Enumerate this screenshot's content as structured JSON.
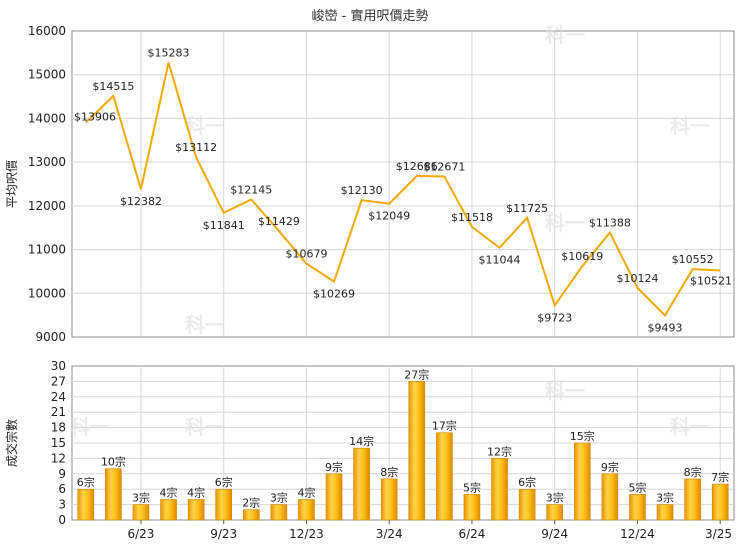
{
  "chart_data": [
    {
      "type": "line",
      "title": "峻巒 - 實用呎價走勢",
      "ylabel": "平均呎價",
      "ylim": [
        9000,
        16000
      ],
      "yticks": [
        9000,
        10000,
        11000,
        12000,
        13000,
        14000,
        15000,
        16000
      ],
      "grid": true,
      "color": "#f5a800",
      "points": [
        {
          "value": 13906,
          "label": "$13906"
        },
        {
          "value": 14515,
          "label": "$14515"
        },
        {
          "value": 12382,
          "label": "$12382"
        },
        {
          "value": 15283,
          "label": "$15283"
        },
        {
          "value": 13112,
          "label": "$13112"
        },
        {
          "value": 11841,
          "label": "$11841"
        },
        {
          "value": 12145,
          "label": "$12145"
        },
        {
          "value": 11429,
          "label": "$11429"
        },
        {
          "value": 10679,
          "label": "$10679"
        },
        {
          "value": 10269,
          "label": "$10269"
        },
        {
          "value": 12130,
          "label": "$12130"
        },
        {
          "value": 12049,
          "label": "$12049"
        },
        {
          "value": 12686,
          "label": "$12686"
        },
        {
          "value": 12671,
          "label": "$12671"
        },
        {
          "value": 11518,
          "label": "$11518"
        },
        {
          "value": 11044,
          "label": "$11044"
        },
        {
          "value": 11725,
          "label": "$11725"
        },
        {
          "value": 9723,
          "label": "$9723"
        },
        {
          "value": 10619,
          "label": "$10619"
        },
        {
          "value": 11388,
          "label": "$11388"
        },
        {
          "value": 10124,
          "label": "$10124"
        },
        {
          "value": 9493,
          "label": "$9493"
        },
        {
          "value": 10552,
          "label": "$10552"
        },
        {
          "value": 10521,
          "label": "$10521"
        }
      ]
    },
    {
      "type": "bar",
      "ylabel": "成交宗數",
      "ylim": [
        0,
        30
      ],
      "yticks": [
        0,
        3,
        6,
        9,
        12,
        15,
        18,
        21,
        24,
        27,
        30
      ],
      "grid": true,
      "color": "#f5a800",
      "bars": [
        {
          "value": 6,
          "label": "6宗"
        },
        {
          "value": 10,
          "label": "10宗"
        },
        {
          "value": 3,
          "label": "3宗"
        },
        {
          "value": 4,
          "label": "4宗"
        },
        {
          "value": 4,
          "label": "4宗"
        },
        {
          "value": 6,
          "label": "6宗"
        },
        {
          "value": 2,
          "label": "2宗"
        },
        {
          "value": 3,
          "label": "3宗"
        },
        {
          "value": 4,
          "label": "4宗"
        },
        {
          "value": 9,
          "label": "9宗"
        },
        {
          "value": 14,
          "label": "14宗"
        },
        {
          "value": 8,
          "label": "8宗"
        },
        {
          "value": 27,
          "label": "27宗"
        },
        {
          "value": 17,
          "label": "17宗"
        },
        {
          "value": 5,
          "label": "5宗"
        },
        {
          "value": 12,
          "label": "12宗"
        },
        {
          "value": 6,
          "label": "6宗"
        },
        {
          "value": 3,
          "label": "3宗"
        },
        {
          "value": 15,
          "label": "15宗"
        },
        {
          "value": 9,
          "label": "9宗"
        },
        {
          "value": 5,
          "label": "5宗"
        },
        {
          "value": 3,
          "label": "3宗"
        },
        {
          "value": 8,
          "label": "8宗"
        },
        {
          "value": 7,
          "label": "7宗"
        }
      ],
      "xticks": [
        {
          "index": 2,
          "label": "6/23"
        },
        {
          "index": 5,
          "label": "9/23"
        },
        {
          "index": 8,
          "label": "12/23"
        },
        {
          "index": 11,
          "label": "3/24"
        },
        {
          "index": 14,
          "label": "6/24"
        },
        {
          "index": 17,
          "label": "9/24"
        },
        {
          "index": 20,
          "label": "12/24"
        },
        {
          "index": 23,
          "label": "3/25"
        }
      ]
    }
  ],
  "watermark": "科一"
}
